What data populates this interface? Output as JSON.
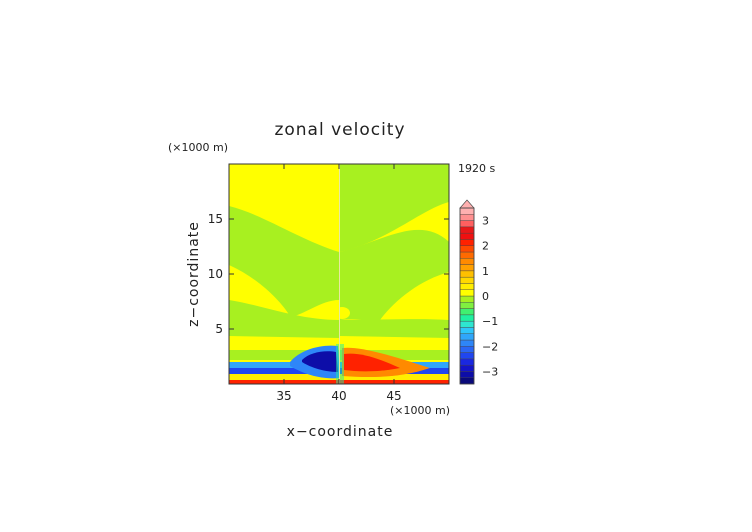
{
  "chart_data": {
    "type": "heatmap",
    "title": "zonal velocity",
    "xlabel": "x−coordinate",
    "ylabel": "z−coordinate",
    "x_unit": "(×1000 m)",
    "y_unit": "(×1000 m)",
    "time_label": "1920 s",
    "xlim": [
      30,
      50
    ],
    "ylim": [
      0,
      20
    ],
    "x_ticks": [
      35,
      40,
      45
    ],
    "y_ticks": [
      5,
      10,
      15
    ],
    "colorbar": {
      "levels": [
        -3.5,
        -3.25,
        -3,
        -2.75,
        -2.5,
        -2.25,
        -2,
        -1.75,
        -1.5,
        -1.25,
        -1,
        -0.75,
        -0.5,
        -0.25,
        0,
        0.25,
        0.5,
        0.75,
        1,
        1.25,
        1.5,
        1.75,
        2,
        2.25,
        2.5,
        2.75,
        3,
        3.25,
        3.5
      ],
      "colors": [
        "#0a0a7a",
        "#0d0da8",
        "#1414c8",
        "#1a28e0",
        "#2046f0",
        "#2a66f5",
        "#2e86f8",
        "#30a6fa",
        "#2fc6fa",
        "#2ee6d0",
        "#20f0a0",
        "#40f070",
        "#80f040",
        "#a8f020",
        "#ffff00",
        "#ffee00",
        "#ffd800",
        "#ffc000",
        "#ffa000",
        "#ff8a00",
        "#ff6a00",
        "#ff4a00",
        "#ff2200",
        "#f01010",
        "#e81818",
        "#ff6060",
        "#ff9090",
        "#ffb0b0"
      ],
      "tick_labels": [
        "3",
        "2",
        "1",
        "0",
        "−1",
        "−2",
        "−3"
      ],
      "tick_values": [
        3,
        2,
        1,
        0,
        -1,
        -2,
        -3
      ]
    }
  }
}
